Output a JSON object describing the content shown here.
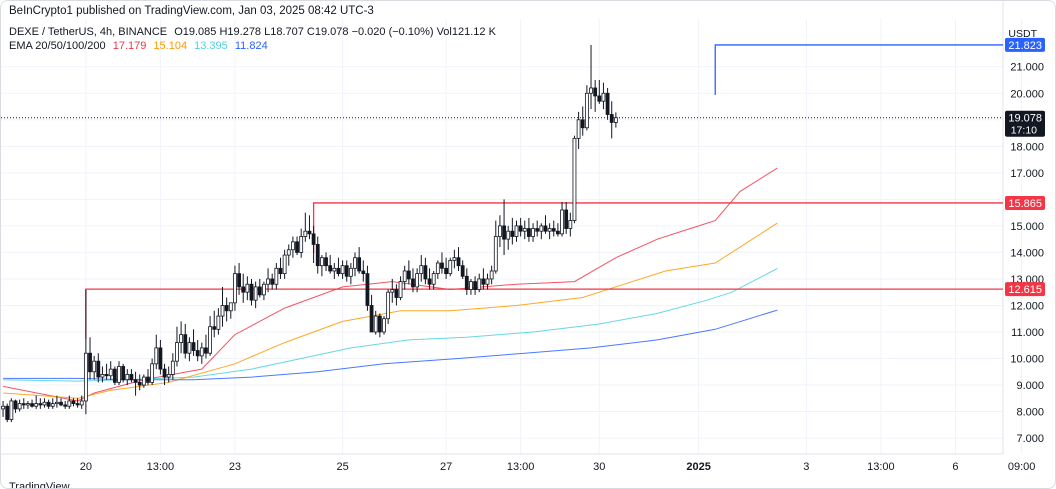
{
  "publisher_text": "BeInCrypto1 published on TradingView.com, Jan 03, 2025 08:42 UTC-3",
  "legend": {
    "symbol": "DEXE / TetherUS, 4h, BINANCE",
    "ohlc": "O19.085 H19.278 L18.707 C19.078 −0.020 (−0.10%) Vol121.12 K",
    "ema_label": "EMA 20/50/100/200",
    "ema_values": [
      "17.179",
      "15.104",
      "13.395",
      "11.824"
    ]
  },
  "footer_text": "TradingView",
  "chart_data": {
    "type": "candlestick",
    "currency": "USDT",
    "ylim": [
      6.4,
      22.8
    ],
    "y_ticks": [
      "7.000",
      "8.000",
      "9.000",
      "10.000",
      "11.000",
      "12.000",
      "13.000",
      "14.000",
      "15.000",
      "16.000",
      "17.000",
      "18.000",
      "19.000",
      "20.000",
      "21.000"
    ],
    "x_ticks": [
      {
        "label": "20",
        "bar": 20,
        "bold": false
      },
      {
        "label": "13:00",
        "bar": 38,
        "bold": false
      },
      {
        "label": "23",
        "bar": 56,
        "bold": false
      },
      {
        "label": "25",
        "bar": 82,
        "bold": false
      },
      {
        "label": "27",
        "bar": 107,
        "bold": false
      },
      {
        "label": "13:00",
        "bar": 125,
        "bold": false
      },
      {
        "label": "30",
        "bar": 144,
        "bold": false
      },
      {
        "label": "2025",
        "bar": 168,
        "bold": true
      },
      {
        "label": "3",
        "bar": 194,
        "bold": false
      },
      {
        "label": "13:00",
        "bar": 212,
        "bold": false
      },
      {
        "label": "6",
        "bar": 230,
        "bold": false
      },
      {
        "label": "09:00",
        "bar": 246,
        "bold": false
      }
    ],
    "candles": [
      [
        8.1,
        8.4,
        7.8,
        8.2
      ],
      [
        8.2,
        8.3,
        7.6,
        7.7
      ],
      [
        7.7,
        8.5,
        7.6,
        8.4
      ],
      [
        8.4,
        8.45,
        7.95,
        8.1
      ],
      [
        8.1,
        8.45,
        8.0,
        8.3
      ],
      [
        8.3,
        8.5,
        8.1,
        8.25
      ],
      [
        8.25,
        8.4,
        8.1,
        8.3
      ],
      [
        8.3,
        8.45,
        8.15,
        8.2
      ],
      [
        8.2,
        8.6,
        8.1,
        8.3
      ],
      [
        8.3,
        8.5,
        8.1,
        8.25
      ],
      [
        8.25,
        8.5,
        8.15,
        8.35
      ],
      [
        8.35,
        8.45,
        8.1,
        8.2
      ],
      [
        8.2,
        8.5,
        8.1,
        8.3
      ],
      [
        8.3,
        8.6,
        8.15,
        8.35
      ],
      [
        8.35,
        8.5,
        8.2,
        8.25
      ],
      [
        8.25,
        8.4,
        8.1,
        8.2
      ],
      [
        8.2,
        8.6,
        8.1,
        8.4
      ],
      [
        8.4,
        8.5,
        8.2,
        8.3
      ],
      [
        8.3,
        8.5,
        8.15,
        8.25
      ],
      [
        8.25,
        8.6,
        8.1,
        8.4
      ],
      [
        8.4,
        12.6,
        7.9,
        10.2
      ],
      [
        10.2,
        10.8,
        9.2,
        9.5
      ],
      [
        9.5,
        10.1,
        9.2,
        9.9
      ],
      [
        9.9,
        10.2,
        9.1,
        9.3
      ],
      [
        9.3,
        9.7,
        9.1,
        9.4
      ],
      [
        9.4,
        9.8,
        9.2,
        9.35
      ],
      [
        9.35,
        9.9,
        9.2,
        9.6
      ],
      [
        9.6,
        9.7,
        9.0,
        9.1
      ],
      [
        9.1,
        9.9,
        9.0,
        9.7
      ],
      [
        9.7,
        9.8,
        9.1,
        9.2
      ],
      [
        9.2,
        9.6,
        9.0,
        9.4
      ],
      [
        9.4,
        9.6,
        9.1,
        9.2
      ],
      [
        9.2,
        9.5,
        8.6,
        9.1
      ],
      [
        9.1,
        9.4,
        8.8,
        9.0
      ],
      [
        9.0,
        9.4,
        8.9,
        9.3
      ],
      [
        9.3,
        9.6,
        9.0,
        9.1
      ],
      [
        9.1,
        10.0,
        9.0,
        9.8
      ],
      [
        9.8,
        10.9,
        9.6,
        10.4
      ],
      [
        10.4,
        10.7,
        9.4,
        9.6
      ],
      [
        9.6,
        9.8,
        9.0,
        9.3
      ],
      [
        9.3,
        9.7,
        9.1,
        9.4
      ],
      [
        9.4,
        10.2,
        9.2,
        9.9
      ],
      [
        9.9,
        11.2,
        9.7,
        10.6
      ],
      [
        10.6,
        11.4,
        10.2,
        10.9
      ],
      [
        10.9,
        11.3,
        10.0,
        10.2
      ],
      [
        10.2,
        10.8,
        9.9,
        10.6
      ],
      [
        10.6,
        11.1,
        10.1,
        10.3
      ],
      [
        10.3,
        10.7,
        9.9,
        10.1
      ],
      [
        10.1,
        10.6,
        9.8,
        10.4
      ],
      [
        10.4,
        10.9,
        10.0,
        10.2
      ],
      [
        10.2,
        11.6,
        10.1,
        11.2
      ],
      [
        11.2,
        11.8,
        10.8,
        11.1
      ],
      [
        11.1,
        11.9,
        10.9,
        11.6
      ],
      [
        11.6,
        12.7,
        11.2,
        12.0
      ],
      [
        12.0,
        12.3,
        11.4,
        11.8
      ],
      [
        11.8,
        12.1,
        11.5,
        12.1
      ],
      [
        12.1,
        13.5,
        11.8,
        13.2
      ],
      [
        13.2,
        13.6,
        12.4,
        12.7
      ],
      [
        12.7,
        13.2,
        12.1,
        12.5
      ],
      [
        12.5,
        13.1,
        12.2,
        12.8
      ],
      [
        12.8,
        13.0,
        12.0,
        12.2
      ],
      [
        12.2,
        12.9,
        11.9,
        12.7
      ],
      [
        12.7,
        13.0,
        12.3,
        12.4
      ],
      [
        12.4,
        12.9,
        12.2,
        12.8
      ],
      [
        12.8,
        13.4,
        12.5,
        13.0
      ],
      [
        13.0,
        13.2,
        12.6,
        12.8
      ],
      [
        12.8,
        13.6,
        12.6,
        13.4
      ],
      [
        13.4,
        13.8,
        13.0,
        13.2
      ],
      [
        13.2,
        14.1,
        13.0,
        13.9
      ],
      [
        13.9,
        14.3,
        13.5,
        14.1
      ],
      [
        14.1,
        14.6,
        13.8,
        14.4
      ],
      [
        14.4,
        14.6,
        13.9,
        14.0
      ],
      [
        14.0,
        14.9,
        13.8,
        14.6
      ],
      [
        14.6,
        15.5,
        14.4,
        14.8
      ],
      [
        14.8,
        15.4,
        14.5,
        14.7
      ],
      [
        14.7,
        15.0,
        13.6,
        14.3
      ],
      [
        14.3,
        14.6,
        13.2,
        13.5
      ],
      [
        13.5,
        13.9,
        13.1,
        13.8
      ],
      [
        13.8,
        14.0,
        13.3,
        13.5
      ],
      [
        13.5,
        13.9,
        13.2,
        13.3
      ],
      [
        13.3,
        13.6,
        13.0,
        13.4
      ],
      [
        13.4,
        13.8,
        13.1,
        13.2
      ],
      [
        13.2,
        13.7,
        13.0,
        13.5
      ],
      [
        13.5,
        13.7,
        12.9,
        13.1
      ],
      [
        13.1,
        13.6,
        12.8,
        13.4
      ],
      [
        13.4,
        14.0,
        13.1,
        13.8
      ],
      [
        13.8,
        14.2,
        13.2,
        13.3
      ],
      [
        13.3,
        13.7,
        12.9,
        13.2
      ],
      [
        13.2,
        13.5,
        11.8,
        12.0
      ],
      [
        12.0,
        12.4,
        11.0,
        11.0
      ],
      [
        11.0,
        11.8,
        10.9,
        11.6
      ],
      [
        11.6,
        11.7,
        10.8,
        11.0
      ],
      [
        11.0,
        11.6,
        10.9,
        11.5
      ],
      [
        11.5,
        12.6,
        11.3,
        12.5
      ],
      [
        12.5,
        13.0,
        12.1,
        12.6
      ],
      [
        12.6,
        12.8,
        12.0,
        12.3
      ],
      [
        12.3,
        13.1,
        12.2,
        12.9
      ],
      [
        12.9,
        13.5,
        12.6,
        13.3
      ],
      [
        13.3,
        13.7,
        12.8,
        13.0
      ],
      [
        13.0,
        13.4,
        12.5,
        12.7
      ],
      [
        12.7,
        13.4,
        12.5,
        13.2
      ],
      [
        13.2,
        13.9,
        12.9,
        13.5
      ],
      [
        13.5,
        13.8,
        12.8,
        13.0
      ],
      [
        13.0,
        13.4,
        12.6,
        12.8
      ],
      [
        12.8,
        13.3,
        12.6,
        13.2
      ],
      [
        13.2,
        13.7,
        13.0,
        13.6
      ],
      [
        13.6,
        14.0,
        13.2,
        13.4
      ],
      [
        13.4,
        13.8,
        13.0,
        13.2
      ],
      [
        13.2,
        13.8,
        13.1,
        13.7
      ],
      [
        13.7,
        14.1,
        13.4,
        13.8
      ],
      [
        13.8,
        14.2,
        13.3,
        13.5
      ],
      [
        13.5,
        13.7,
        13.0,
        13.1
      ],
      [
        13.1,
        13.4,
        12.4,
        12.6
      ],
      [
        12.6,
        13.0,
        12.4,
        12.9
      ],
      [
        12.9,
        13.1,
        12.4,
        12.6
      ],
      [
        12.6,
        13.2,
        12.5,
        13.0
      ],
      [
        13.0,
        13.4,
        12.6,
        12.8
      ],
      [
        12.8,
        13.2,
        12.6,
        13.0
      ],
      [
        13.0,
        13.5,
        12.8,
        13.3
      ],
      [
        13.3,
        15.2,
        13.2,
        14.6
      ],
      [
        14.6,
        15.4,
        14.2,
        15.0
      ],
      [
        15.0,
        16.0,
        13.9,
        14.5
      ],
      [
        14.5,
        15.0,
        14.1,
        14.8
      ],
      [
        14.8,
        15.3,
        14.3,
        14.6
      ],
      [
        14.6,
        15.2,
        14.4,
        15.0
      ],
      [
        15.0,
        15.3,
        14.6,
        14.8
      ],
      [
        14.8,
        15.2,
        14.5,
        14.9
      ],
      [
        14.9,
        15.3,
        14.4,
        14.6
      ],
      [
        14.6,
        15.1,
        14.4,
        14.9
      ],
      [
        14.9,
        15.2,
        14.6,
        14.8
      ],
      [
        14.8,
        15.1,
        14.5,
        15.0
      ],
      [
        15.0,
        15.4,
        14.7,
        14.8
      ],
      [
        14.8,
        15.1,
        14.5,
        14.9
      ],
      [
        14.9,
        15.2,
        14.6,
        14.8
      ],
      [
        14.8,
        15.1,
        14.6,
        14.7
      ],
      [
        14.7,
        15.9,
        14.6,
        15.6
      ],
      [
        15.6,
        15.9,
        14.7,
        14.9
      ],
      [
        14.9,
        15.5,
        14.6,
        15.2
      ],
      [
        15.2,
        18.4,
        15.1,
        18.3
      ],
      [
        18.3,
        19.3,
        17.9,
        19.0
      ],
      [
        19.0,
        19.5,
        18.4,
        18.7
      ],
      [
        18.7,
        20.3,
        18.6,
        20.0
      ],
      [
        20.0,
        21.82,
        19.4,
        20.2
      ],
      [
        20.2,
        20.5,
        19.3,
        19.9
      ],
      [
        19.9,
        20.5,
        19.6,
        19.7
      ],
      [
        19.7,
        20.4,
        19.4,
        20.0
      ],
      [
        20.0,
        20.2,
        19.0,
        19.2
      ],
      [
        19.2,
        19.7,
        18.3,
        18.9
      ],
      [
        18.9,
        19.278,
        18.707,
        19.078
      ]
    ],
    "ema_lines": [
      {
        "label": "17.179",
        "color": "#f23645",
        "points": [
          [
            0,
            8.95
          ],
          [
            18,
            8.4
          ],
          [
            22,
            8.7
          ],
          [
            34,
            9.2
          ],
          [
            48,
            9.6
          ],
          [
            56,
            10.9
          ],
          [
            68,
            11.9
          ],
          [
            82,
            12.7
          ],
          [
            94,
            12.9
          ],
          [
            108,
            12.6
          ],
          [
            124,
            12.8
          ],
          [
            138,
            12.9
          ],
          [
            148,
            13.8
          ],
          [
            158,
            14.5
          ],
          [
            166,
            14.9
          ],
          [
            172,
            15.2
          ],
          [
            178,
            16.3
          ],
          [
            187,
            17.179
          ]
        ]
      },
      {
        "label": "15.104",
        "color": "#ff9800",
        "points": [
          [
            0,
            8.7
          ],
          [
            18,
            8.5
          ],
          [
            26,
            8.8
          ],
          [
            40,
            9.1
          ],
          [
            56,
            9.8
          ],
          [
            68,
            10.6
          ],
          [
            82,
            11.4
          ],
          [
            96,
            11.8
          ],
          [
            108,
            11.8
          ],
          [
            124,
            12.0
          ],
          [
            140,
            12.3
          ],
          [
            150,
            12.8
          ],
          [
            160,
            13.3
          ],
          [
            172,
            13.6
          ],
          [
            178,
            14.2
          ],
          [
            187,
            15.104
          ]
        ]
      },
      {
        "label": "13.395",
        "color": "#4dd0e1",
        "points": [
          [
            0,
            9.2
          ],
          [
            18,
            9.15
          ],
          [
            30,
            9.2
          ],
          [
            46,
            9.3
          ],
          [
            60,
            9.6
          ],
          [
            72,
            10.0
          ],
          [
            84,
            10.4
          ],
          [
            98,
            10.7
          ],
          [
            112,
            10.8
          ],
          [
            128,
            11.0
          ],
          [
            144,
            11.3
          ],
          [
            158,
            11.7
          ],
          [
            170,
            12.2
          ],
          [
            176,
            12.5
          ],
          [
            187,
            13.395
          ]
        ]
      },
      {
        "label": "11.824",
        "color": "#2962ff",
        "points": [
          [
            0,
            9.25
          ],
          [
            18,
            9.25
          ],
          [
            30,
            9.2
          ],
          [
            46,
            9.2
          ],
          [
            60,
            9.3
          ],
          [
            76,
            9.5
          ],
          [
            92,
            9.8
          ],
          [
            110,
            10.0
          ],
          [
            126,
            10.2
          ],
          [
            142,
            10.4
          ],
          [
            158,
            10.7
          ],
          [
            172,
            11.1
          ],
          [
            187,
            11.824
          ]
        ]
      }
    ],
    "levels": [
      {
        "label": "21.823",
        "value": 21.823,
        "start_bar": 172,
        "color": "#2962ff"
      },
      {
        "label": "15.865",
        "value": 15.865,
        "start_bar": 75,
        "color": "#f23645"
      },
      {
        "label": "12.615",
        "value": 12.615,
        "start_bar": 20,
        "color": "#f23645"
      }
    ],
    "last_price": {
      "label": "19.078",
      "value": 19.078,
      "countdown": "17:10"
    },
    "visible_range_bars": [
      0,
      242
    ]
  }
}
